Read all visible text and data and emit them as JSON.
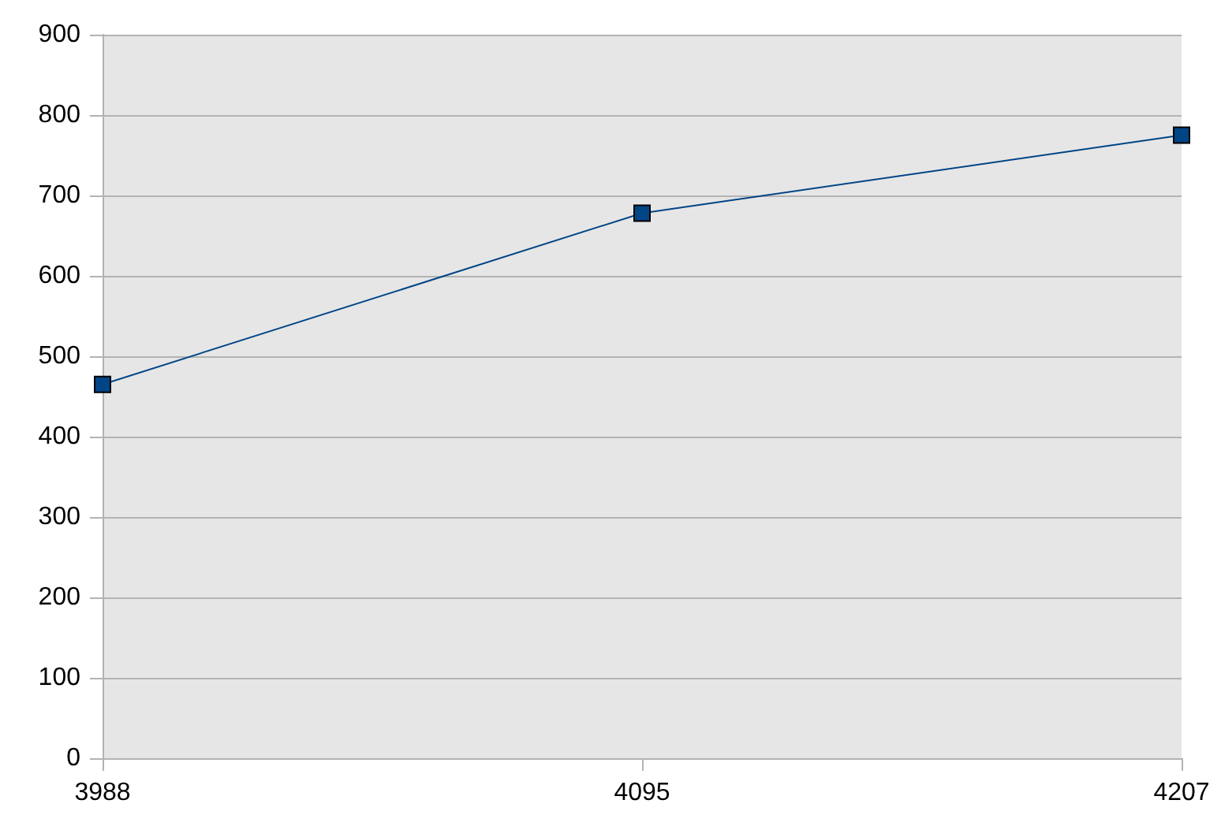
{
  "chart_data": {
    "type": "line",
    "categories": [
      "3988",
      "4095",
      "4207"
    ],
    "series": [
      {
        "color": "#004586",
        "values": [
          465,
          678,
          775
        ]
      }
    ],
    "ylim": [
      0,
      900
    ],
    "yticks": [
      0,
      100,
      200,
      300,
      400,
      500,
      600,
      700,
      800,
      900
    ],
    "grid": "y",
    "marker": "square",
    "line_style": "solid"
  }
}
